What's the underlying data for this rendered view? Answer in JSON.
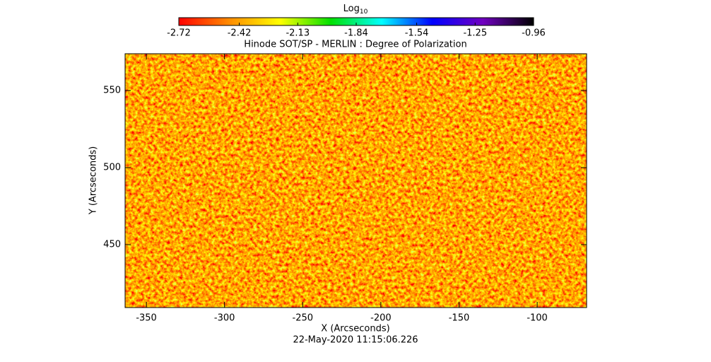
{
  "chart_data": {
    "type": "image",
    "title": "Hinode SOT/SP - MERLIN : Degree of Polarization",
    "x_label": "X (Arcseconds)",
    "y_label": "Y (Arcseconds)",
    "footer": "22-May-2020 11:15:06.226",
    "xlim": [
      -363.6,
      -68.4
    ],
    "xticks": [
      -350,
      -300,
      -250,
      -200,
      -150,
      -100
    ],
    "ylim": [
      409.2,
      573.9
    ],
    "yticks": [
      450,
      500,
      550
    ],
    "colorbar": {
      "label": {
        "base": "Log",
        "subscript": "10"
      },
      "lim": [
        -2.72,
        -0.96
      ],
      "ticks": [
        -2.72,
        -2.42,
        -2.13,
        -1.84,
        -1.54,
        -1.25,
        -0.96
      ],
      "colors": [
        "#ff0000",
        "#ff8c00",
        "#ffff00",
        "#00e000",
        "#00ffff",
        "#0000ff",
        "#7000c0",
        "#000000"
      ]
    }
  }
}
